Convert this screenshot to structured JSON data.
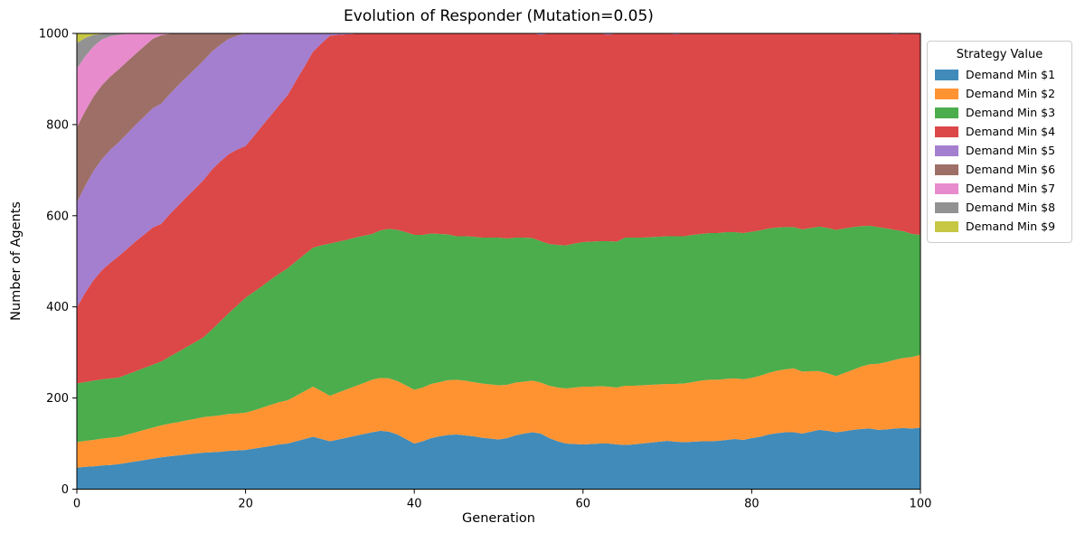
{
  "chart_data": {
    "type": "area",
    "stacked": true,
    "title": "Evolution of Responder (Mutation=0.05)",
    "xlabel": "Generation",
    "ylabel": "Number of Agents",
    "legend_title": "Strategy Value",
    "legend_position": "upper right, outside plot",
    "grid": false,
    "xlim": [
      0,
      100
    ],
    "ylim": [
      0,
      1000
    ],
    "x_ticks": [
      0,
      20,
      40,
      60,
      80,
      100
    ],
    "y_ticks": [
      0,
      200,
      400,
      600,
      800,
      1000
    ],
    "x_note": "x value equals array index = generation 0..100",
    "series": [
      {
        "name": "Demand Min $1",
        "color": "#408bba",
        "values": [
          47,
          49,
          50,
          52,
          53,
          55,
          58,
          61,
          64,
          67,
          70,
          72,
          74,
          76,
          78,
          80,
          81,
          82,
          84,
          85,
          86,
          89,
          92,
          95,
          98,
          100,
          105,
          110,
          115,
          110,
          105,
          109,
          113,
          117,
          121,
          125,
          128,
          126,
          120,
          110,
          100,
          105,
          112,
          116,
          119,
          120,
          118,
          116,
          113,
          111,
          109,
          112,
          118,
          122,
          125,
          122,
          112,
          105,
          100,
          99,
          98,
          99,
          100,
          100,
          98,
          97,
          98,
          100,
          102,
          104,
          106,
          104,
          103,
          104,
          105,
          105,
          106,
          108,
          110,
          108,
          112,
          115,
          120,
          123,
          125,
          125,
          122,
          126,
          130,
          128,
          125,
          127,
          130,
          132,
          133,
          130,
          131,
          133,
          134,
          133,
          135
        ]
      },
      {
        "name": "Demand Min $2",
        "color": "#ff9332",
        "values": [
          56,
          57,
          58,
          59,
          60,
          60,
          62,
          64,
          66,
          68,
          70,
          72,
          73,
          75,
          76,
          78,
          79,
          80,
          81,
          81,
          82,
          84,
          87,
          90,
          93,
          95,
          100,
          105,
          110,
          105,
          100,
          103,
          106,
          109,
          112,
          115,
          116,
          117,
          117,
          118,
          118,
          118,
          119,
          119,
          120,
          120,
          120,
          119,
          119,
          119,
          119,
          117,
          116,
          114,
          113,
          112,
          115,
          118,
          121,
          124,
          127,
          126,
          126,
          125,
          125,
          130,
          129,
          128,
          127,
          126,
          125,
          127,
          129,
          131,
          133,
          135,
          134,
          134,
          133,
          133,
          132,
          134,
          135,
          137,
          138,
          140,
          136,
          133,
          129,
          126,
          123,
          128,
          132,
          137,
          141,
          145,
          148,
          151,
          154,
          157,
          160
        ]
      },
      {
        "name": "Demand Min $3",
        "color": "#4bad4b",
        "values": [
          129,
          129,
          130,
          130,
          130,
          130,
          132,
          134,
          136,
          138,
          140,
          147,
          154,
          161,
          168,
          175,
          190,
          206,
          221,
          237,
          252,
          260,
          267,
          275,
          282,
          290,
          295,
          300,
          305,
          320,
          334,
          331,
          328,
          326,
          323,
          320,
          324,
          328,
          332,
          336,
          340,
          335,
          330,
          325,
          320,
          315,
          317,
          319,
          320,
          322,
          324,
          321,
          318,
          316,
          313,
          310,
          311,
          313,
          314,
          316,
          317,
          318,
          318,
          319,
          320,
          325,
          325,
          324,
          324,
          324,
          324,
          324,
          323,
          323,
          322,
          322,
          322,
          322,
          321,
          321,
          321,
          319,
          317,
          314,
          312,
          310,
          312,
          314,
          317,
          319,
          321,
          317,
          313,
          308,
          304,
          300,
          293,
          285,
          278,
          270,
          263
        ]
      },
      {
        "name": "Demand Min $4",
        "color": "#dc4748",
        "values": [
          167,
          196,
          221,
          240,
          254,
          267,
          276,
          285,
          293,
          301,
          302,
          312,
          321,
          329,
          337,
          345,
          351,
          351,
          349,
          342,
          333,
          342,
          352,
          360,
          370,
          380,
          397,
          413,
          430,
          443,
          456,
          454,
          451,
          447,
          444,
          440,
          432,
          429,
          431,
          436,
          442,
          442,
          439,
          440,
          441,
          445,
          445,
          446,
          448,
          448,
          448,
          450,
          448,
          448,
          449,
          453,
          462,
          464,
          465,
          461,
          458,
          457,
          456,
          453,
          457,
          448,
          448,
          448,
          447,
          446,
          445,
          443,
          445,
          442,
          440,
          438,
          438,
          436,
          436,
          438,
          435,
          432,
          428,
          426,
          425,
          425,
          430,
          427,
          424,
          427,
          431,
          428,
          425,
          423,
          422,
          425,
          428,
          429,
          434,
          440,
          442
        ]
      },
      {
        "name": "Demand Min $5",
        "color": "#a47ecf",
        "values": [
          230,
          235,
          240,
          244,
          248,
          250,
          253,
          256,
          259,
          262,
          264,
          264,
          264,
          263,
          263,
          262,
          259,
          256,
          253,
          250,
          247,
          225,
          202,
          180,
          157,
          135,
          103,
          72,
          40,
          22,
          5,
          3,
          2,
          1,
          0,
          0,
          0,
          0,
          0,
          0,
          0,
          0,
          0,
          0,
          0,
          0,
          0,
          0,
          0,
          0,
          0,
          0,
          0,
          0,
          0,
          3,
          0,
          0,
          0,
          0,
          0,
          0,
          0,
          3,
          0,
          0,
          0,
          0,
          0,
          0,
          0,
          2,
          0,
          0,
          0,
          0,
          0,
          0,
          0,
          0,
          0,
          0,
          0,
          0,
          0,
          0,
          0,
          0,
          0,
          0,
          0,
          0,
          0,
          0,
          0,
          0,
          0,
          2,
          0,
          0,
          0
        ]
      },
      {
        "name": "Demand Min $6",
        "color": "#9d6f66",
        "values": [
          165,
          164,
          163,
          162,
          161,
          160,
          158,
          156,
          154,
          152,
          150,
          132,
          114,
          96,
          78,
          60,
          40,
          25,
          12,
          5,
          0,
          0,
          0,
          0,
          0,
          0,
          0,
          0,
          0,
          0,
          0,
          0,
          0,
          0,
          0,
          0,
          0,
          0,
          0,
          0,
          0,
          0,
          0,
          0,
          0,
          0,
          0,
          0,
          0,
          0,
          0,
          0,
          0,
          0,
          0,
          0,
          0,
          0,
          0,
          0,
          0,
          0,
          0,
          0,
          0,
          0,
          0,
          0,
          0,
          0,
          0,
          0,
          0,
          0,
          0,
          0,
          0,
          0,
          0,
          0,
          0,
          0,
          0,
          0,
          0,
          0,
          0,
          0,
          0,
          0,
          0,
          0,
          0,
          0,
          0,
          0,
          0,
          0,
          0,
          0,
          0
        ]
      },
      {
        "name": "Demand Min $7",
        "color": "#e78bcc",
        "values": [
          129,
          120,
          110,
          100,
          88,
          75,
          60,
          44,
          28,
          12,
          4,
          1,
          0,
          0,
          0,
          0,
          0,
          0,
          0,
          0,
          0,
          0,
          0,
          0,
          0,
          0,
          0,
          0,
          0,
          0,
          0,
          0,
          0,
          0,
          0,
          0,
          0,
          0,
          0,
          0,
          0,
          0,
          0,
          0,
          0,
          0,
          0,
          0,
          0,
          0,
          0,
          0,
          0,
          0,
          0,
          0,
          0,
          0,
          0,
          0,
          0,
          0,
          0,
          0,
          0,
          0,
          0,
          0,
          0,
          0,
          0,
          0,
          0,
          0,
          0,
          0,
          0,
          0,
          0,
          0,
          0,
          0,
          0,
          0,
          0,
          0,
          0,
          0,
          0,
          0,
          0,
          0,
          0,
          0,
          0,
          0,
          0,
          0,
          0,
          0,
          0
        ]
      },
      {
        "name": "Demand Min $8",
        "color": "#929292",
        "values": [
          56,
          40,
          25,
          12,
          6,
          3,
          1,
          0,
          0,
          0,
          0,
          0,
          0,
          0,
          0,
          0,
          0,
          0,
          0,
          0,
          0,
          0,
          0,
          0,
          0,
          0,
          0,
          0,
          0,
          0,
          0,
          0,
          0,
          0,
          0,
          0,
          0,
          0,
          0,
          0,
          0,
          0,
          0,
          0,
          0,
          0,
          0,
          0,
          0,
          0,
          0,
          0,
          0,
          0,
          0,
          0,
          0,
          0,
          0,
          0,
          0,
          0,
          0,
          0,
          0,
          0,
          0,
          0,
          0,
          0,
          0,
          0,
          0,
          0,
          0,
          0,
          0,
          0,
          0,
          0,
          0,
          0,
          0,
          0,
          0,
          0,
          0,
          0,
          0,
          0,
          0,
          0,
          0,
          0,
          0,
          0,
          0,
          0,
          0,
          0,
          0
        ]
      },
      {
        "name": "Demand Min $9",
        "color": "#c6c743",
        "values": [
          21,
          10,
          3,
          1,
          0,
          0,
          0,
          0,
          0,
          0,
          0,
          0,
          0,
          0,
          0,
          0,
          0,
          0,
          0,
          0,
          0,
          0,
          0,
          0,
          0,
          0,
          0,
          0,
          0,
          0,
          0,
          0,
          0,
          0,
          0,
          0,
          0,
          0,
          0,
          0,
          0,
          0,
          0,
          0,
          0,
          0,
          0,
          0,
          0,
          0,
          0,
          0,
          0,
          0,
          0,
          0,
          0,
          0,
          0,
          0,
          0,
          0,
          0,
          0,
          0,
          0,
          0,
          0,
          0,
          0,
          0,
          0,
          0,
          0,
          0,
          0,
          0,
          0,
          0,
          0,
          0,
          0,
          0,
          0,
          0,
          0,
          0,
          0,
          0,
          0,
          0,
          0,
          0,
          0,
          0,
          0,
          0,
          0,
          0,
          0,
          0
        ]
      }
    ]
  }
}
